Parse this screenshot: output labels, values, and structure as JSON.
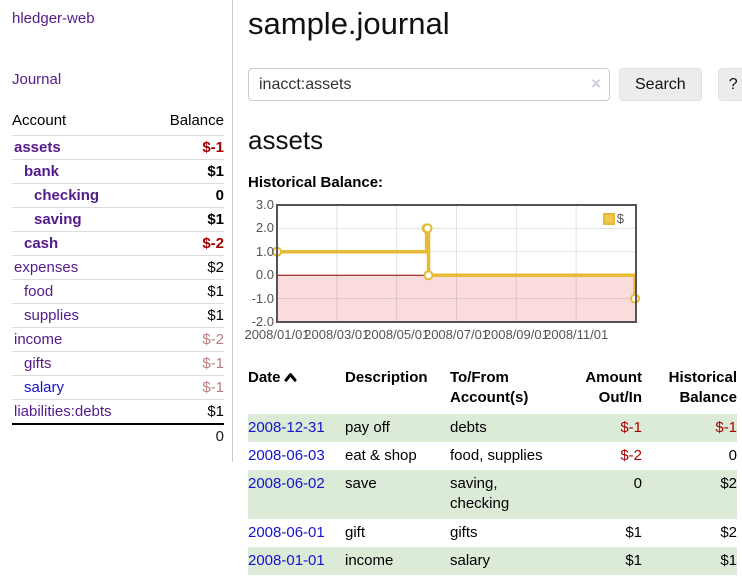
{
  "app": {
    "brand": "hledger-web",
    "nav_journal": "Journal"
  },
  "colors": {
    "link_purple": "#551a8b",
    "link_blue": "#1414cc",
    "negative_strong": "#a40000",
    "negative_muted": "#bd7f7f",
    "row_shade_green": "#dcead8",
    "chart_line_gold": "#e6ba35",
    "negative_region_pink": "#fbdcdc",
    "zero_line_red": "#8b0000"
  },
  "sidebar": {
    "header": {
      "account": "Account",
      "balance": "Balance"
    },
    "accounts": [
      {
        "name": "assets",
        "depth": 0,
        "balance": "$-1",
        "bold": true,
        "neg": "strong"
      },
      {
        "name": "bank",
        "depth": 1,
        "balance": "$1",
        "bold": true
      },
      {
        "name": "checking",
        "depth": 2,
        "balance": "0",
        "bold": true
      },
      {
        "name": "saving",
        "depth": 2,
        "balance": "$1",
        "bold": true
      },
      {
        "name": "cash",
        "depth": 1,
        "balance": "$-2",
        "bold": true,
        "neg": "strong"
      },
      {
        "name": "expenses",
        "depth": 0,
        "balance": "$2"
      },
      {
        "name": "food",
        "depth": 1,
        "balance": "$1"
      },
      {
        "name": "supplies",
        "depth": 1,
        "balance": "$1"
      },
      {
        "name": "income",
        "depth": 0,
        "balance": "$-2",
        "neg": "muted"
      },
      {
        "name": "gifts",
        "depth": 1,
        "balance": "$-1",
        "neg": "muted"
      },
      {
        "name": "salary",
        "depth": 1,
        "balance": "$-1",
        "neg": "muted",
        "unvisited": true
      },
      {
        "name": "liabilities:debts",
        "depth": 0,
        "balance": "$1"
      }
    ],
    "total": "0"
  },
  "header": {
    "title": "sample.journal"
  },
  "search": {
    "value": "inacct:assets",
    "clear_icon": "×",
    "button": "Search",
    "help_button": "?"
  },
  "account_page": {
    "title": "assets",
    "chart_label": "Historical Balance:"
  },
  "chart_data": {
    "type": "line",
    "title": "Historical Balance:",
    "series": [
      {
        "name": "$",
        "color": "#e6ba35",
        "step": true,
        "points": [
          {
            "x": "2008-01-01",
            "y": 1
          },
          {
            "x": "2008-06-01",
            "y": 2
          },
          {
            "x": "2008-06-02",
            "y": 2
          },
          {
            "x": "2008-06-03",
            "y": 0
          },
          {
            "x": "2008-12-31",
            "y": -1
          }
        ]
      }
    ],
    "xlim": [
      "2008-01-01",
      "2009-01-01"
    ],
    "ylim": [
      -2,
      3
    ],
    "ytick_values": [
      3,
      2,
      1,
      0,
      -1,
      -2
    ],
    "yticks": [
      "3.0",
      "2.0",
      "1.0",
      "0.0",
      "-1.0",
      "-2.0"
    ],
    "xticks": [
      {
        "label": "2008/01/01",
        "pos": 0
      },
      {
        "label": "2008/03/01",
        "pos": 2
      },
      {
        "label": "2008/05/01",
        "pos": 4
      },
      {
        "label": "2008/07/01",
        "pos": 6
      },
      {
        "label": "2008/09/01",
        "pos": 8
      },
      {
        "label": "2008/11/01",
        "pos": 10
      }
    ],
    "legend": {
      "label": "$",
      "position": "top-right"
    },
    "grid": true,
    "negative_region_highlighted": true
  },
  "register": {
    "columns": [
      "Date",
      "Description",
      "To/From Account(s)",
      "Amount Out/In",
      "Historical Balance"
    ],
    "sort": {
      "column": "Date",
      "direction": "asc"
    },
    "rows": [
      {
        "date": "2008-12-31",
        "description": "pay off",
        "accounts": "debts",
        "amount": "$-1",
        "balance": "$-1",
        "amount_neg": true,
        "balance_neg": true,
        "shade": true
      },
      {
        "date": "2008-06-03",
        "description": "eat & shop",
        "accounts": "food, supplies",
        "amount": "$-2",
        "balance": "0",
        "amount_neg": true,
        "balance_neg": false,
        "shade": false
      },
      {
        "date": "2008-06-02",
        "description": "save",
        "accounts": "saving, checking",
        "amount": "0",
        "balance": "$2",
        "amount_neg": false,
        "balance_neg": false,
        "shade": true
      },
      {
        "date": "2008-06-01",
        "description": "gift",
        "accounts": "gifts",
        "amount": "$1",
        "balance": "$2",
        "amount_neg": false,
        "balance_neg": false,
        "shade": false
      },
      {
        "date": "2008-01-01",
        "description": "income",
        "accounts": "salary",
        "amount": "$1",
        "balance": "$1",
        "amount_neg": false,
        "balance_neg": false,
        "shade": true
      }
    ]
  }
}
